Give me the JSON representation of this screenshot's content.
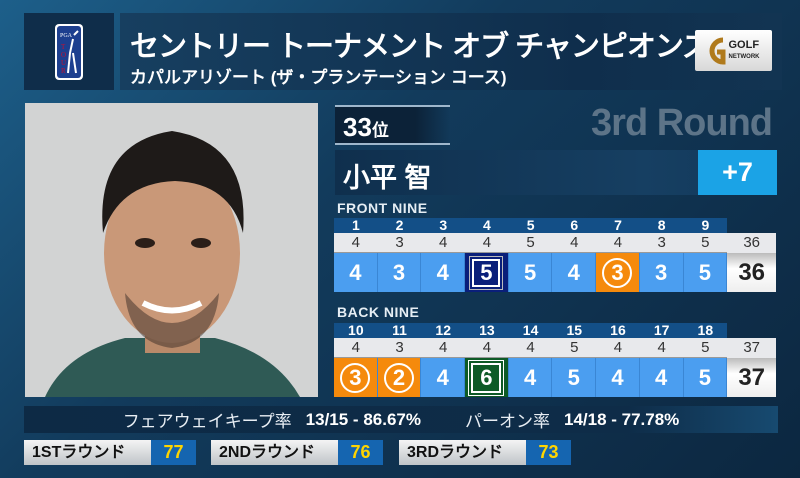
{
  "header": {
    "logo": "PGA TOUR",
    "title": "セントリー トーナメント オブ チャンピオンズ",
    "subtitle": "カパルアリゾート (ザ・プランテーション コース)",
    "broadcaster_logo": "GOLF NETWORK"
  },
  "player": {
    "rank": "33",
    "rank_suffix": "位",
    "round": "3rd Round",
    "name": "小平 智",
    "to_par": "+7"
  },
  "front_nine": {
    "label": "FRONT NINE",
    "holes": [
      "1",
      "2",
      "3",
      "4",
      "5",
      "6",
      "7",
      "8",
      "9"
    ],
    "par": [
      "4",
      "3",
      "4",
      "4",
      "5",
      "4",
      "4",
      "3",
      "5"
    ],
    "par_total": "36",
    "scores": [
      "4",
      "3",
      "4",
      "5",
      "5",
      "4",
      "3",
      "3",
      "5"
    ],
    "score_types": [
      "par",
      "par",
      "par",
      "bogey",
      "par",
      "par",
      "birdie",
      "par",
      "par"
    ],
    "score_total": "36"
  },
  "back_nine": {
    "label": "BACK NINE",
    "holes": [
      "10",
      "11",
      "12",
      "13",
      "14",
      "15",
      "16",
      "17",
      "18"
    ],
    "par": [
      "4",
      "3",
      "4",
      "4",
      "4",
      "5",
      "4",
      "4",
      "5"
    ],
    "par_total": "37",
    "scores": [
      "3",
      "2",
      "4",
      "6",
      "4",
      "5",
      "4",
      "4",
      "5"
    ],
    "score_types": [
      "birdie",
      "birdie",
      "par",
      "dbogey",
      "par",
      "par",
      "par",
      "par",
      "par"
    ],
    "score_total": "37"
  },
  "stats": {
    "fairway_label": "フェアウェイキープ率",
    "fairway_value": "13/15 - 86.67%",
    "gir_label": "パーオン率",
    "gir_value": "14/18 - 77.78%"
  },
  "rounds": [
    {
      "label": "1STラウンド",
      "score": "77"
    },
    {
      "label": "2NDラウンド",
      "score": "76"
    },
    {
      "label": "3RDラウンド",
      "score": "73"
    }
  ],
  "colors": {
    "par": "#4b9ef0",
    "birdie": "#f58a0c",
    "bogey": "#0a1f7a",
    "double_bogey": "#0d5a26",
    "to_par": "#1ba3e6",
    "round_score": "#ffd400"
  }
}
